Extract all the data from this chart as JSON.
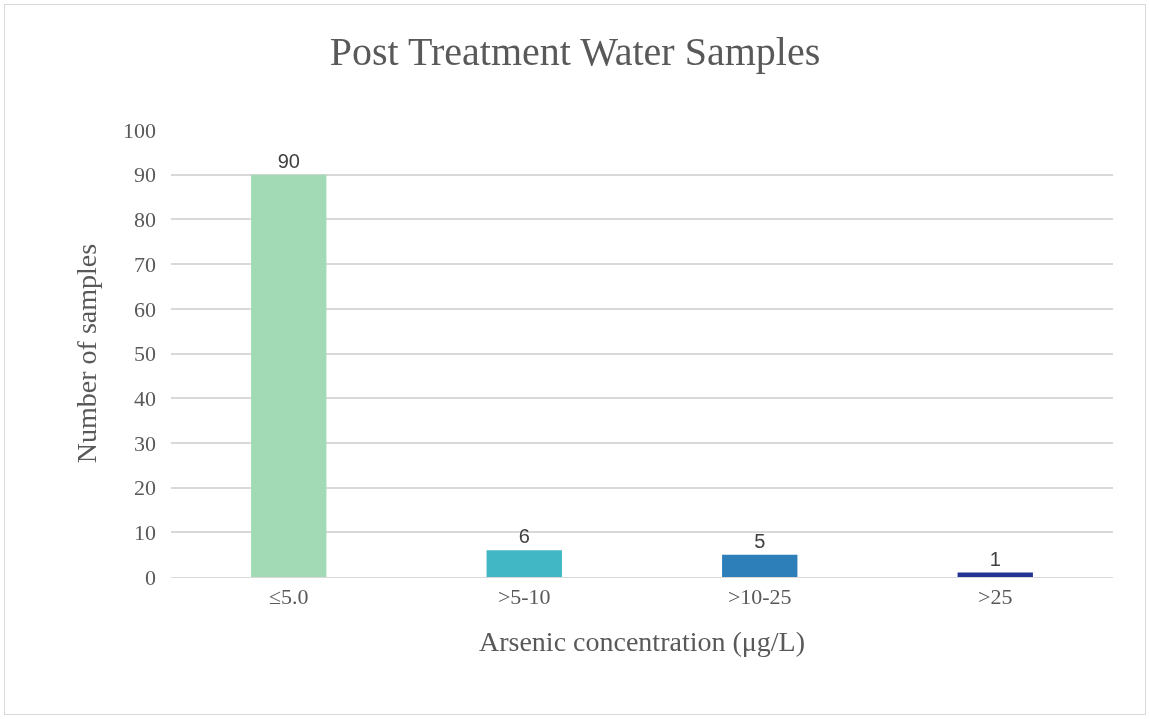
{
  "chart_data": {
    "type": "bar",
    "title": "Post Treatment Water Samples",
    "xlabel": "Arsenic concentration (μg/L)",
    "ylabel": "Number of samples",
    "categories": [
      "≤5.0",
      ">5-10",
      ">10-25",
      ">25"
    ],
    "values": [
      90,
      6,
      5,
      1
    ],
    "colors": [
      "#a1dab4",
      "#41b6c4",
      "#2c7fb8",
      "#253494"
    ],
    "ylim": [
      0,
      100
    ],
    "yticks": [
      0,
      10,
      20,
      30,
      40,
      50,
      60,
      70,
      80,
      90,
      100
    ],
    "grid": "y",
    "data_labels": true
  }
}
